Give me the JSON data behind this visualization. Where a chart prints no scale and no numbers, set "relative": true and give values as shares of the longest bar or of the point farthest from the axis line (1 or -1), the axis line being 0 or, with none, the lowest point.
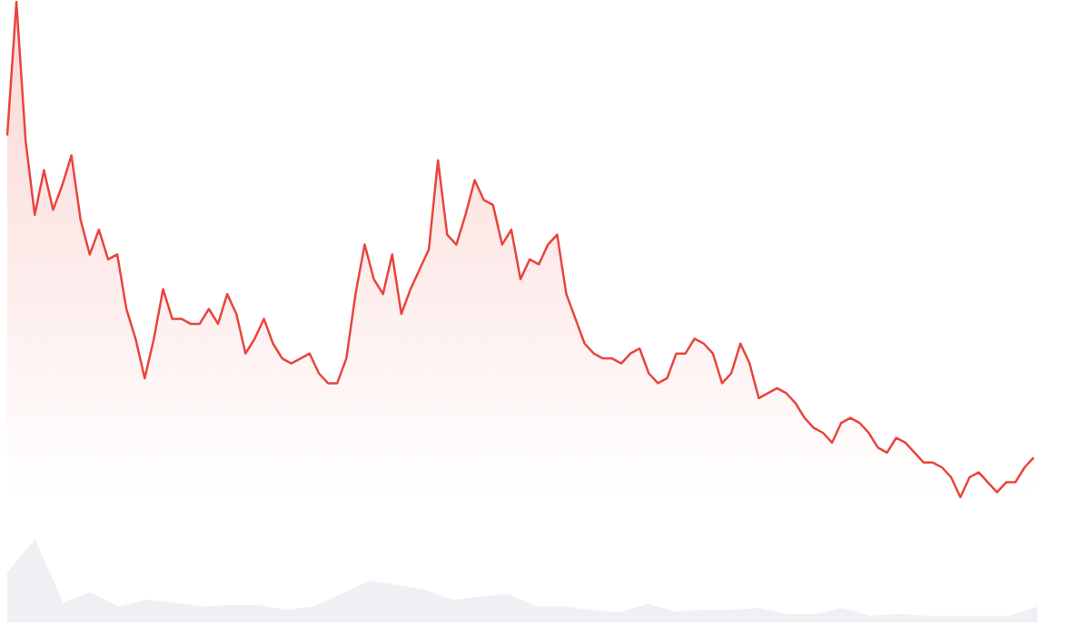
{
  "chart_data": [
    {
      "type": "area",
      "relative": true,
      "categories": [
        null,
        null,
        null,
        null,
        null,
        null,
        null,
        null,
        null,
        null,
        null,
        null,
        null,
        null,
        null,
        null,
        null,
        null,
        null,
        null,
        null,
        null,
        null,
        null,
        null,
        null,
        null,
        null,
        null,
        null,
        null,
        null,
        null,
        null,
        null,
        null,
        null,
        null,
        null,
        null,
        null,
        null,
        null,
        null,
        null,
        null,
        null,
        null,
        null,
        null,
        null,
        null,
        null,
        null,
        null,
        null,
        null,
        null,
        null,
        null,
        null,
        null,
        null,
        null,
        null,
        null,
        null,
        null,
        null,
        null,
        null,
        null,
        null,
        null,
        null,
        null,
        null,
        null,
        null,
        null,
        null,
        null,
        null,
        null,
        null,
        null,
        null,
        null,
        null,
        null,
        null,
        null,
        null,
        null,
        null,
        null,
        null,
        null,
        null,
        null,
        null,
        null,
        null,
        null,
        null,
        null,
        null,
        null,
        null,
        null,
        null,
        null,
        null
      ],
      "series": [
        {
          "color": "#e8453c",
          "values": [
            0.73,
            1.0,
            0.72,
            0.57,
            0.66,
            0.58,
            0.63,
            0.69,
            0.56,
            0.49,
            0.54,
            0.48,
            0.49,
            0.38,
            0.32,
            0.24,
            0.32,
            0.42,
            0.36,
            0.36,
            0.35,
            0.35,
            0.38,
            0.35,
            0.41,
            0.37,
            0.29,
            0.32,
            0.36,
            0.31,
            0.28,
            0.27,
            0.28,
            0.29,
            0.25,
            0.23,
            0.23,
            0.28,
            0.41,
            0.51,
            0.44,
            0.41,
            0.49,
            0.37,
            0.42,
            0.46,
            0.5,
            0.68,
            0.53,
            0.51,
            0.57,
            0.64,
            0.6,
            0.59,
            0.51,
            0.54,
            0.44,
            0.48,
            0.47,
            0.51,
            0.53,
            0.41,
            0.36,
            0.31,
            0.29,
            0.28,
            0.28,
            0.27,
            0.29,
            0.3,
            0.25,
            0.23,
            0.24,
            0.29,
            0.29,
            0.32,
            0.31,
            0.29,
            0.23,
            0.25,
            0.31,
            0.27,
            0.2,
            0.21,
            0.22,
            0.21,
            0.19,
            0.16,
            0.14,
            0.13,
            0.11,
            0.15,
            0.16,
            0.15,
            0.13,
            0.1,
            0.09,
            0.12,
            0.11,
            0.09,
            0.07,
            0.07,
            0.06,
            0.04,
            0.0,
            0.04,
            0.05,
            0.03,
            0.01,
            0.03,
            0.03,
            0.06,
            0.08
          ]
        }
      ]
    },
    {
      "type": "area",
      "relative": true,
      "categories": [
        null,
        null,
        null,
        null,
        null,
        null,
        null,
        null,
        null,
        null,
        null,
        null,
        null,
        null,
        null,
        null,
        null,
        null,
        null,
        null,
        null,
        null,
        null,
        null,
        null,
        null,
        null,
        null,
        null,
        null,
        null,
        null,
        null,
        null,
        null,
        null,
        null,
        null
      ],
      "series": [
        {
          "color": "#eef0f3",
          "values": [
            0.6,
            1.0,
            0.24,
            0.36,
            0.19,
            0.27,
            0.24,
            0.19,
            0.21,
            0.21,
            0.15,
            0.19,
            0.34,
            0.5,
            0.45,
            0.39,
            0.27,
            0.31,
            0.34,
            0.19,
            0.19,
            0.15,
            0.12,
            0.22,
            0.13,
            0.15,
            0.15,
            0.17,
            0.1,
            0.1,
            0.17,
            0.08,
            0.1,
            0.08,
            0.08,
            0.08,
            0.08,
            0.19
          ]
        }
      ]
    }
  ]
}
